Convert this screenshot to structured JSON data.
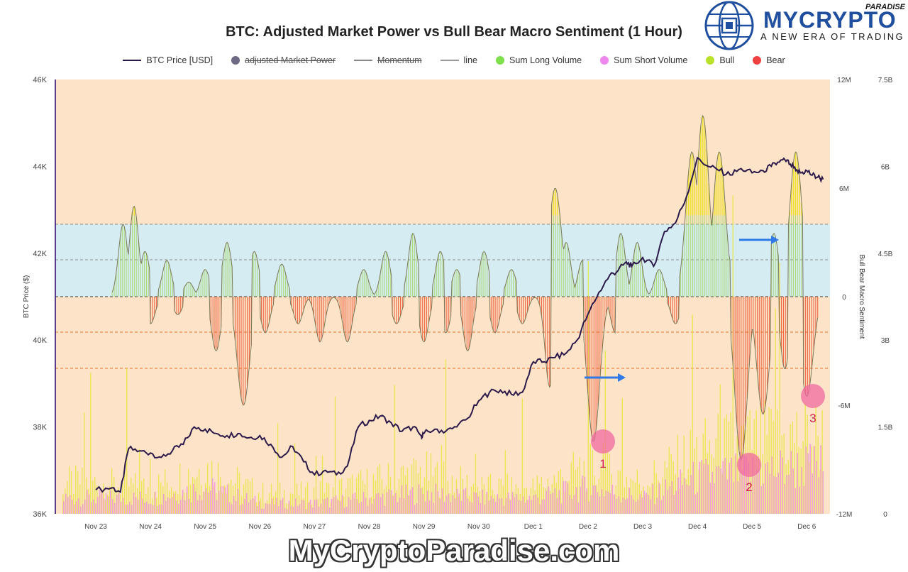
{
  "title": "BTC: Adjusted Market Power vs Bull Bear Macro Sentiment (1 Hour)",
  "logo": {
    "brand_a": "MY",
    "brand_b": "CRYPTO",
    "paradise": "PARADISE",
    "tagline": "A NEW ERA OF TRADING"
  },
  "watermark": "MyCryptoParadise.com",
  "legend": [
    {
      "label": "BTC Price [USD]",
      "kind": "line",
      "color": "#2b1a4a",
      "strike": false
    },
    {
      "label": "adjusted Market Power",
      "kind": "dot",
      "color": "#6e6a86",
      "strike": true
    },
    {
      "label": "Momentum",
      "kind": "line",
      "color": "#888888",
      "strike": true
    },
    {
      "label": "line",
      "kind": "line",
      "color": "#999999",
      "strike": false
    },
    {
      "label": "Sum Long Volume",
      "kind": "dot",
      "color": "#7ee04b",
      "strike": false
    },
    {
      "label": "Sum Short Volume",
      "kind": "dot",
      "color": "#ee88ee",
      "strike": false
    },
    {
      "label": "Bull",
      "kind": "dot",
      "color": "#b9e12a",
      "strike": false
    },
    {
      "label": "Bear",
      "kind": "dot",
      "color": "#f04040",
      "strike": false
    }
  ],
  "chart_data": {
    "type": "line",
    "title": "BTC: Adjusted Market Power vs Bull Bear Macro Sentiment (1 Hour)",
    "xlabel": "",
    "ylabel": "BTC Price ($)",
    "y2label": "Bull Bear Macro Sentiment",
    "x_categories": [
      "Nov 23",
      "Nov 24",
      "Nov 25",
      "Nov 26",
      "Nov 27",
      "Nov 28",
      "Nov 29",
      "Nov 30",
      "Dec 1",
      "Dec 2",
      "Dec 3",
      "Dec 4",
      "Dec 5",
      "Dec 6"
    ],
    "y_left": {
      "ticks": [
        "36K",
        "38K",
        "40K",
        "42K",
        "44K",
        "46K"
      ],
      "range": [
        36000,
        46000
      ]
    },
    "y_right_sentiment": {
      "ticks": [
        "-12M",
        "-6M",
        "0",
        "6M",
        "12M"
      ],
      "range": [
        -12000000,
        12000000
      ]
    },
    "y_right_volume": {
      "ticks": [
        "0",
        "1.5B",
        "3B",
        "4.5B",
        "6B",
        "7.5B"
      ],
      "range": [
        0,
        7500000000
      ]
    },
    "grid": false,
    "legend_position": "top",
    "colors": {
      "price": "#2b1a4a",
      "bull": "#d8e84a",
      "bear": "#e8502a",
      "long_volume": "#e8e84a",
      "short_volume": "#f0a0d8",
      "bg_orange": "#fde3c8",
      "bg_blue": "#d6ecf3",
      "marker": "#f06aa0",
      "arrow": "#2f7ae8"
    },
    "series": [
      {
        "name": "BTC Price [USD]",
        "x": [
          0.0,
          0.3,
          0.45,
          0.6,
          0.8,
          1.0,
          1.2,
          1.4,
          1.6,
          1.8,
          2.0,
          2.2,
          2.4,
          2.6,
          2.8,
          3.0,
          3.2,
          3.4,
          3.6,
          3.8,
          4.0,
          4.2,
          4.4,
          4.6,
          4.8,
          5.0,
          5.2,
          5.4,
          5.6,
          5.8,
          5.95,
          6.0,
          6.2,
          6.4,
          6.6,
          6.8,
          7.0,
          7.2,
          7.4,
          7.6,
          7.8,
          8.0,
          8.2,
          8.4,
          8.6,
          8.8,
          9.0,
          9.2,
          9.4,
          9.55,
          9.7,
          9.8,
          10.0,
          10.2,
          10.4,
          10.6,
          10.8,
          11.0,
          11.2,
          11.4,
          11.6,
          11.8,
          12.0,
          12.2,
          12.35,
          12.5,
          12.6,
          12.7,
          12.8,
          12.9,
          13.0,
          13.1,
          13.2,
          13.3
        ],
        "values": [
          36550,
          36600,
          36500,
          37500,
          37450,
          37400,
          37300,
          37450,
          37600,
          38000,
          37950,
          37850,
          37800,
          37850,
          37750,
          37800,
          37600,
          37300,
          37550,
          37200,
          36900,
          37000,
          36900,
          37100,
          38000,
          38150,
          38250,
          38100,
          37900,
          38000,
          37800,
          37850,
          37950,
          37900,
          38000,
          38200,
          38600,
          38800,
          38850,
          38750,
          38800,
          39500,
          39500,
          39600,
          39700,
          40000,
          40600,
          41100,
          41500,
          41600,
          41800,
          41700,
          41900,
          41700,
          42500,
          42700,
          43300,
          44200,
          44000,
          43900,
          43800,
          43950,
          43850,
          43900,
          44000,
          44100,
          44150,
          44050,
          43900,
          43850,
          43900,
          43800,
          43750,
          43700
        ]
      },
      {
        "name": "Bull",
        "x": [
          0.5,
          0.7,
          0.9,
          1.3,
          1.7,
          2.0,
          2.4,
          2.9,
          3.4,
          4.9,
          5.3,
          5.8,
          6.3,
          6.6,
          7.1,
          7.6,
          8.4,
          8.6,
          8.9,
          9.6,
          9.9,
          10.3,
          10.9,
          11.1,
          11.4,
          11.6,
          12.4,
          12.8
        ],
        "values": [
          4.0,
          5.0,
          2.5,
          2.0,
          0.8,
          1.5,
          3.0,
          2.5,
          1.8,
          1.5,
          2.5,
          3.5,
          2.5,
          1.5,
          2.5,
          1.5,
          6.0,
          3.0,
          2.0,
          3.5,
          3.0,
          1.5,
          8.0,
          10.0,
          8.0,
          2.0,
          3.5,
          8.0
        ]
      },
      {
        "name": "Bear",
        "x": [
          1.0,
          1.5,
          2.2,
          2.7,
          3.1,
          3.7,
          4.1,
          4.6,
          5.5,
          6.0,
          6.4,
          6.8,
          7.3,
          7.8,
          8.3,
          9.1,
          9.5,
          10.6,
          11.0,
          11.8,
          12.2,
          12.6,
          13.0
        ],
        "values": [
          -1.5,
          -1.0,
          -3.0,
          -6.0,
          -2.0,
          -1.5,
          -2.5,
          -2.5,
          -1.5,
          -2.5,
          -2.0,
          -3.0,
          -2.0,
          -1.5,
          -5.0,
          -8.0,
          -2.0,
          -1.5,
          -2.0,
          -9.0,
          -6.5,
          -4.0,
          -5.5
        ]
      },
      {
        "name": "Sum Long Volume",
        "x": [
          0,
          1,
          2,
          3,
          4,
          5,
          6,
          7,
          8,
          9,
          10,
          11,
          12,
          13
        ],
        "values": [
          0.6,
          0.5,
          0.9,
          0.4,
          0.4,
          0.6,
          0.8,
          0.5,
          0.5,
          0.9,
          0.6,
          1.2,
          1.4,
          1.5
        ]
      },
      {
        "name": "Sum Short Volume",
        "x": [
          0,
          1,
          2,
          3,
          4,
          5,
          6,
          7,
          8,
          9,
          10,
          11,
          12,
          13
        ],
        "values": [
          0.3,
          0.3,
          0.5,
          0.2,
          0.2,
          0.3,
          0.4,
          0.3,
          0.3,
          0.5,
          0.3,
          0.7,
          0.8,
          0.9
        ]
      }
    ],
    "annotations": [
      {
        "label": "1",
        "x": 9.3,
        "sentiment": -8.0
      },
      {
        "label": "2",
        "x": 12.0,
        "sentiment": -9.5
      },
      {
        "label": "3",
        "x": 13.2,
        "sentiment": -5.5
      }
    ]
  }
}
